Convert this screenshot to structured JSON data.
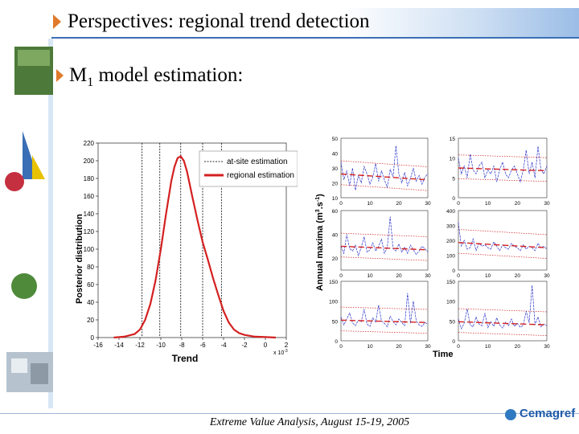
{
  "slide": {
    "title": "Perspectives: regional trend detection",
    "subtitle_main": "M",
    "subtitle_sub": "1",
    "subtitle_rest": " model estimation:",
    "footer": "Extreme Value Analysis, August 15-19, 2005",
    "logo_text": "Cemagref",
    "accent_color": "#e07a2a",
    "brand_color": "#1f5aa8"
  },
  "chart_data": [
    {
      "type": "line",
      "ylabel": "Posterior distribution",
      "xlabel": "Trend",
      "x_multiplier": "x 10",
      "x_multiplier_exp": "-3",
      "xlim": [
        -16,
        2
      ],
      "ylim": [
        0,
        220
      ],
      "x_ticks": [
        -16,
        -14,
        -12,
        -10,
        -8,
        -6,
        -4,
        -2,
        0,
        2
      ],
      "y_ticks": [
        0,
        20,
        40,
        60,
        80,
        100,
        120,
        140,
        160,
        180,
        200,
        220
      ],
      "legend": [
        "at-site estimation",
        "regional estimation"
      ],
      "legend_position": "top-right",
      "atsite_lines": [
        -11.8,
        -10.1,
        -8.1,
        -6.0,
        -4.2
      ],
      "series": [
        {
          "name": "regional estimation",
          "color": "#d42020",
          "x": [
            -14.5,
            -13.5,
            -12.5,
            -12,
            -11.5,
            -11,
            -10.5,
            -10,
            -9.5,
            -9,
            -8.7,
            -8.4,
            -8.1,
            -7.8,
            -7.5,
            -7,
            -6.5,
            -6,
            -5.5,
            -5,
            -4.5,
            -4,
            -3.5,
            -3,
            -2.5,
            -2,
            -1.5,
            -1,
            0,
            1
          ],
          "y": [
            0,
            1,
            4,
            9,
            20,
            38,
            65,
            100,
            140,
            177,
            193,
            203,
            205,
            200,
            188,
            160,
            133,
            108,
            88,
            67,
            48,
            30,
            17,
            9,
            5,
            3,
            2,
            1,
            0.5,
            0
          ]
        }
      ]
    },
    {
      "type": "line",
      "ylabel": "Annual maxima (m",
      "ylabel_exp": "3",
      "ylabel_mid": ".s",
      "ylabel_exp2": "-1",
      "ylabel_end": ")",
      "xlabel": "Time",
      "panels": [
        {
          "ylim": [
            10,
            50
          ],
          "y_ticks": [
            10,
            20,
            30,
            40,
            50
          ],
          "x_ticks": [
            0,
            10,
            20,
            30
          ],
          "values": [
            34,
            22,
            28,
            18,
            30,
            15,
            25,
            20,
            31,
            26,
            19,
            24,
            33,
            21,
            28,
            22,
            17,
            29,
            24,
            45,
            26,
            20,
            27,
            18,
            23,
            30,
            21,
            25,
            19,
            24,
            26
          ],
          "red_start": 26,
          "red_end": 22
        },
        {
          "ylim": [
            0,
            15
          ],
          "y_ticks": [
            0,
            5,
            10,
            15
          ],
          "x_ticks": [
            0,
            10,
            20,
            30
          ],
          "values": [
            10,
            6,
            8,
            5,
            11,
            7,
            6,
            8,
            9,
            5,
            7,
            6,
            8,
            4,
            7,
            9,
            6,
            5,
            7,
            8,
            6,
            4,
            7,
            12,
            6,
            9,
            5,
            13,
            7,
            6,
            8
          ],
          "red_start": 7.5,
          "red_end": 6.8
        },
        {
          "ylim": [
            10,
            60
          ],
          "y_ticks": [
            20,
            40,
            60
          ],
          "x_ticks": [
            0,
            10,
            20,
            30
          ],
          "values": [
            30,
            24,
            40,
            28,
            26,
            31,
            22,
            29,
            38,
            25,
            27,
            33,
            26,
            30,
            36,
            24,
            29,
            55,
            28,
            26,
            32,
            25,
            29,
            24,
            31,
            27,
            23,
            26,
            30,
            28,
            25
          ],
          "red_start": 30,
          "red_end": 27
        },
        {
          "ylim": [
            0,
            400
          ],
          "y_ticks": [
            0,
            100,
            200,
            300,
            400
          ],
          "x_ticks": [
            0,
            10,
            20,
            30
          ],
          "values": [
            320,
            160,
            200,
            140,
            150,
            210,
            130,
            180,
            160,
            170,
            150,
            140,
            190,
            160,
            130,
            170,
            150,
            140,
            180,
            160,
            150,
            130,
            170,
            140,
            160,
            150,
            130,
            180,
            150,
            160,
            140
          ],
          "red_start": 185,
          "red_end": 150
        },
        {
          "ylim": [
            0,
            150
          ],
          "y_ticks": [
            0,
            50,
            100,
            150
          ],
          "x_ticks": [
            0,
            10,
            20,
            30
          ],
          "values": [
            60,
            40,
            55,
            70,
            45,
            38,
            52,
            48,
            80,
            42,
            36,
            58,
            47,
            90,
            50,
            44,
            35,
            62,
            48,
            40,
            55,
            46,
            38,
            120,
            44,
            100,
            50,
            40,
            36,
            46,
            42
          ],
          "red_start": 52,
          "red_end": 46
        },
        {
          "ylim": [
            0,
            150
          ],
          "y_ticks": [
            0,
            50,
            100,
            150
          ],
          "x_ticks": [
            0,
            10,
            20,
            30
          ],
          "values": [
            55,
            30,
            45,
            80,
            40,
            35,
            60,
            42,
            38,
            70,
            33,
            48,
            36,
            58,
            40,
            32,
            47,
            38,
            55,
            36,
            44,
            34,
            39,
            75,
            45,
            140,
            40,
            60,
            35,
            42,
            38
          ],
          "red_start": 48,
          "red_end": 40
        }
      ]
    }
  ]
}
